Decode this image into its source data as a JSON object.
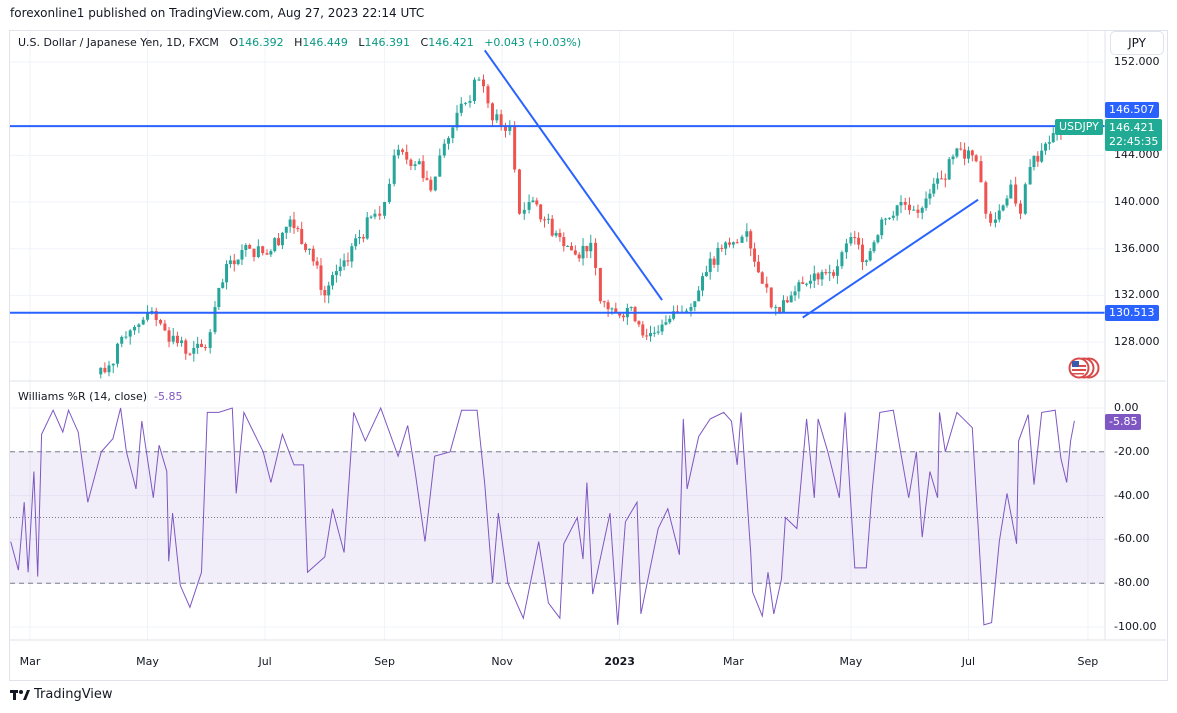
{
  "publisher_line": "forexonline1 published on TradingView.com, Aug 27, 2023 22:14 UTC",
  "symbol": {
    "title": "U.S. Dollar / Japanese Yen, 1D, FXCM",
    "open_label": "O",
    "open": "146.392",
    "high_label": "H",
    "high": "146.449",
    "low_label": "L",
    "low": "146.391",
    "close_label": "C",
    "close": "146.421",
    "change": "+0.043 (+0.03%)"
  },
  "currency_button": "JPY",
  "ticker_label": "USDJPY",
  "last_price": "146.421",
  "countdown": "22:45:35",
  "brand": "TradingView",
  "flag_icon": "us-flag-icon",
  "colors": {
    "up": "#26a69a",
    "down": "#ef5350",
    "trendline": "#2962ff",
    "indicator": "#7e57c2",
    "last_price": "#22ab94"
  },
  "chart_data": [
    {
      "type": "candlestick",
      "title": "U.S. Dollar / Japanese Yen, 1D, FXCM",
      "price_axis_ticks": [
        "152.000",
        "144.000",
        "140.000",
        "136.000",
        "132.000",
        "128.000"
      ],
      "ylim": [
        124.7,
        154.6
      ],
      "time_axis_ticks": [
        "Mar",
        "May",
        "Jul",
        "Sep",
        "Nov",
        "2023",
        "Mar",
        "May",
        "Jul",
        "Sep"
      ],
      "grid": true,
      "approx_close": [
        [
          "2022-03-27",
          124.5
        ],
        [
          "2022-04-11",
          126
        ],
        [
          "2022-04-22",
          129
        ],
        [
          "2022-05-01",
          130.5
        ],
        [
          "2022-05-10",
          129
        ],
        [
          "2022-05-23",
          127
        ],
        [
          "2022-05-31",
          127.5
        ],
        [
          "2022-06-05",
          131
        ],
        [
          "2022-06-13",
          135
        ],
        [
          "2022-06-23",
          136
        ],
        [
          "2022-07-02",
          135.5
        ],
        [
          "2022-07-14",
          138.5
        ],
        [
          "2022-07-24",
          136
        ],
        [
          "2022-08-01",
          132
        ],
        [
          "2022-08-11",
          135
        ],
        [
          "2022-08-19",
          137
        ],
        [
          "2022-08-27",
          139
        ],
        [
          "2022-09-01",
          140
        ],
        [
          "2022-09-06",
          144
        ],
        [
          "2022-09-19",
          143.5
        ],
        [
          "2022-09-25",
          141
        ],
        [
          "2022-10-02",
          145
        ],
        [
          "2022-10-13",
          148.5
        ],
        [
          "2022-10-20",
          150.5
        ],
        [
          "2022-10-27",
          147
        ],
        [
          "2022-11-05",
          146.5
        ],
        [
          "2022-11-10",
          139
        ],
        [
          "2022-11-15",
          140
        ],
        [
          "2022-11-23",
          138.5
        ],
        [
          "2022-12-01",
          137
        ],
        [
          "2022-12-09",
          135.5
        ],
        [
          "2022-12-17",
          136.5
        ],
        [
          "2022-12-22",
          131.5
        ],
        [
          "2022-12-30",
          130.5
        ],
        [
          "2023-01-07",
          131
        ],
        [
          "2023-01-15",
          128.5
        ],
        [
          "2023-01-23",
          129.5
        ],
        [
          "2023-01-31",
          130.5
        ],
        [
          "2023-02-07",
          131
        ],
        [
          "2023-02-15",
          134
        ],
        [
          "2023-02-23",
          136
        ],
        [
          "2023-03-03",
          136.5
        ],
        [
          "2023-03-08",
          137.5
        ],
        [
          "2023-03-16",
          133
        ],
        [
          "2023-03-23",
          131
        ],
        [
          "2023-03-31",
          132
        ],
        [
          "2023-04-08",
          133
        ],
        [
          "2023-04-16",
          134
        ],
        [
          "2023-04-24",
          134.5
        ],
        [
          "2023-05-01",
          137
        ],
        [
          "2023-05-09",
          135
        ],
        [
          "2023-05-17",
          138.5
        ],
        [
          "2023-05-27",
          140
        ],
        [
          "2023-06-07",
          139.5
        ],
        [
          "2023-06-17",
          142
        ],
        [
          "2023-06-27",
          144.5
        ],
        [
          "2023-07-05",
          143.5
        ],
        [
          "2023-07-10",
          139
        ],
        [
          "2023-07-15",
          138.5
        ],
        [
          "2023-07-23",
          141.5
        ],
        [
          "2023-07-28",
          139
        ],
        [
          "2023-08-02",
          143
        ],
        [
          "2023-08-10",
          145
        ],
        [
          "2023-08-18",
          146
        ],
        [
          "2023-08-25",
          146.421
        ]
      ],
      "horizontal_lines": [
        {
          "price": 146.507,
          "label": "146.507"
        },
        {
          "price": 130.513,
          "label": "130.513"
        }
      ],
      "trendlines": [
        {
          "from": [
            "2022-10-23",
            153.0
          ],
          "to": [
            "2023-01-23",
            131.6
          ]
        },
        {
          "from": [
            "2023-04-06",
            130.1
          ],
          "to": [
            "2023-07-06",
            140.2
          ]
        }
      ]
    },
    {
      "type": "line",
      "title": "Williams %R (14, close)",
      "last_value": "-5.85",
      "axis_ticks": [
        "0.00",
        "-20.00",
        "-40.00",
        "-60.00",
        "-80.00",
        "-100.00"
      ],
      "ylim": [
        -100,
        0
      ],
      "levels": {
        "upper": -20,
        "middle": -50,
        "lower": -80
      },
      "values": [
        [
          "2022-02-19",
          -61
        ],
        [
          "2022-02-23",
          -74
        ],
        [
          "2022-02-26",
          -43
        ],
        [
          "2022-02-28",
          -75
        ],
        [
          "2022-03-03",
          -29
        ],
        [
          "2022-03-05",
          -77
        ],
        [
          "2022-03-07",
          -12
        ],
        [
          "2022-03-13",
          -1
        ],
        [
          "2022-03-18",
          -11
        ],
        [
          "2022-03-21",
          -1
        ],
        [
          "2022-03-26",
          -11
        ],
        [
          "2022-03-31",
          -43
        ],
        [
          "2022-04-07",
          -20
        ],
        [
          "2022-04-13",
          -14
        ],
        [
          "2022-04-17",
          0
        ],
        [
          "2022-04-20",
          -20
        ],
        [
          "2022-04-25",
          -37
        ],
        [
          "2022-04-28",
          -6
        ],
        [
          "2022-05-04",
          -41
        ],
        [
          "2022-05-07",
          -17
        ],
        [
          "2022-05-11",
          -29
        ],
        [
          "2022-05-12",
          -70
        ],
        [
          "2022-05-14",
          -48
        ],
        [
          "2022-05-18",
          -81
        ],
        [
          "2022-05-23",
          -91
        ],
        [
          "2022-05-29",
          -75
        ],
        [
          "2022-06-01",
          -2
        ],
        [
          "2022-06-07",
          -2
        ],
        [
          "2022-06-14",
          0
        ],
        [
          "2022-06-16",
          -39
        ],
        [
          "2022-06-20",
          -2
        ],
        [
          "2022-06-30",
          -20
        ],
        [
          "2022-07-04",
          -34
        ],
        [
          "2022-07-10",
          -12
        ],
        [
          "2022-07-16",
          -26
        ],
        [
          "2022-07-21",
          -26
        ],
        [
          "2022-07-23",
          -75
        ],
        [
          "2022-08-01",
          -68
        ],
        [
          "2022-08-05",
          -46
        ],
        [
          "2022-08-11",
          -66
        ],
        [
          "2022-08-16",
          -2
        ],
        [
          "2022-08-22",
          -15
        ],
        [
          "2022-08-30",
          0
        ],
        [
          "2022-09-08",
          -22
        ],
        [
          "2022-09-13",
          -8
        ],
        [
          "2022-09-17",
          -30
        ],
        [
          "2022-09-22",
          -61
        ],
        [
          "2022-09-27",
          -22
        ],
        [
          "2022-10-05",
          -20
        ],
        [
          "2022-10-11",
          -1
        ],
        [
          "2022-10-19",
          -1
        ],
        [
          "2022-10-23",
          -35
        ],
        [
          "2022-10-27",
          -80
        ],
        [
          "2022-10-30",
          -48
        ],
        [
          "2022-11-04",
          -80
        ],
        [
          "2022-11-12",
          -96
        ],
        [
          "2022-11-20",
          -61
        ],
        [
          "2022-11-25",
          -89
        ],
        [
          "2022-12-01",
          -96
        ],
        [
          "2022-12-03",
          -62
        ],
        [
          "2022-12-10",
          -50
        ],
        [
          "2022-12-13",
          -69
        ],
        [
          "2022-12-15",
          -34
        ],
        [
          "2022-12-18",
          -85
        ],
        [
          "2022-12-27",
          -48
        ],
        [
          "2022-12-31",
          -99
        ],
        [
          "2023-01-04",
          -52
        ],
        [
          "2023-01-10",
          -43
        ],
        [
          "2023-01-12",
          -94
        ],
        [
          "2023-01-21",
          -55
        ],
        [
          "2023-01-26",
          -46
        ],
        [
          "2023-02-01",
          -67
        ],
        [
          "2023-02-03",
          -5
        ],
        [
          "2023-02-05",
          -37
        ],
        [
          "2023-02-11",
          -13
        ],
        [
          "2023-02-17",
          -5
        ],
        [
          "2023-02-24",
          -2
        ],
        [
          "2023-02-28",
          -6
        ],
        [
          "2023-03-03",
          -26
        ],
        [
          "2023-03-05",
          -2
        ],
        [
          "2023-03-10",
          -66
        ],
        [
          "2023-03-11",
          -84
        ],
        [
          "2023-03-16",
          -95
        ],
        [
          "2023-03-19",
          -75
        ],
        [
          "2023-03-22",
          -94
        ],
        [
          "2023-03-26",
          -78
        ],
        [
          "2023-03-28",
          -50
        ],
        [
          "2023-04-03",
          -55
        ],
        [
          "2023-04-08",
          -5
        ],
        [
          "2023-04-12",
          -41
        ],
        [
          "2023-04-14",
          -5
        ],
        [
          "2023-04-19",
          -20
        ],
        [
          "2023-04-25",
          -41
        ],
        [
          "2023-04-28",
          -2
        ],
        [
          "2023-05-03",
          -73
        ],
        [
          "2023-05-09",
          -73
        ],
        [
          "2023-05-12",
          -38
        ],
        [
          "2023-05-16",
          -2
        ],
        [
          "2023-05-23",
          -1
        ],
        [
          "2023-05-31",
          -41
        ],
        [
          "2023-06-04",
          -20
        ],
        [
          "2023-06-07",
          -59
        ],
        [
          "2023-06-11",
          -29
        ],
        [
          "2023-06-15",
          -41
        ],
        [
          "2023-06-16",
          -2
        ],
        [
          "2023-06-19",
          -20
        ],
        [
          "2023-06-25",
          -2
        ],
        [
          "2023-07-03",
          -9
        ],
        [
          "2023-07-09",
          -99
        ],
        [
          "2023-07-13",
          -98
        ],
        [
          "2023-07-17",
          -61
        ],
        [
          "2023-07-21",
          -39
        ],
        [
          "2023-07-26",
          -62
        ],
        [
          "2023-07-27",
          -15
        ],
        [
          "2023-08-01",
          -3
        ],
        [
          "2023-08-04",
          -35
        ],
        [
          "2023-08-08",
          -2
        ],
        [
          "2023-08-15",
          -1
        ],
        [
          "2023-08-18",
          -23
        ],
        [
          "2023-08-21",
          -34
        ],
        [
          "2023-08-23",
          -15
        ],
        [
          "2023-08-25",
          -5.85
        ]
      ]
    }
  ]
}
